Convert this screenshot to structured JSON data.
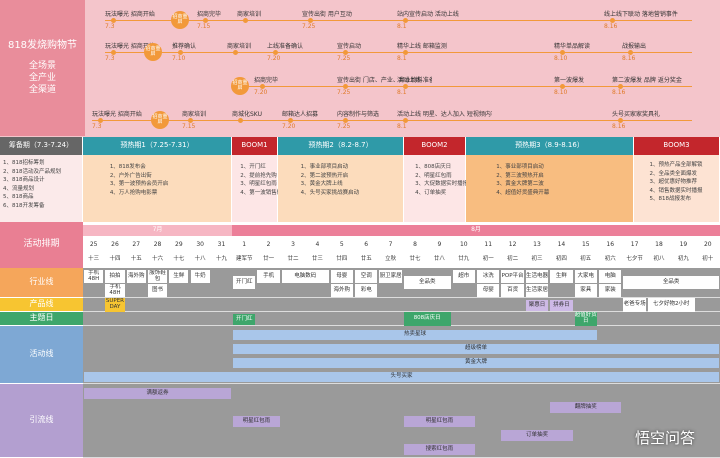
{
  "header": {
    "title": "818发烧购物节",
    "tagline": [
      "全场景",
      "全产业",
      "全渠道"
    ]
  },
  "timelines": [
    [
      {
        "text": "玩法曝光 招商开始",
        "date": "7.3"
      },
      {
        "text": "招商重启"
      },
      {
        "text": "招商完毕",
        "date": "7.15"
      },
      {
        "text": "商家培训"
      },
      {
        "text": "宣传出街 用户互动",
        "date": "7.25"
      },
      {
        "text": "站内宣传启动 活动上线",
        "date": "8.1"
      },
      {
        "text": "线上线下联动 落地营销事件",
        "date": "8.16"
      }
    ],
    [
      {
        "text": "玩法曝光 招商开始",
        "date": "7.3"
      },
      {
        "text": "招商重启"
      },
      {
        "text": "推荐确认",
        "date": "7.10"
      },
      {
        "text": "商家培训"
      },
      {
        "text": "上线准备确认",
        "date": "7.20"
      },
      {
        "text": "宣传启动",
        "date": "7.25"
      },
      {
        "text": "精华上线 邮箱监测",
        "date": "8.1"
      },
      {
        "text": "精华单品解读",
        "date": "8.10"
      },
      {
        "text": "战报输出",
        "date": "8.16"
      }
    ],
    [
      {
        "text": "招商重启"
      },
      {
        "text": "招商完毕",
        "date": "7.20"
      },
      {
        "text": "宣传出街 门店、产业、异业物料准备完毕",
        "date": "7.25"
      },
      {
        "text": "活动上线",
        "date": "8.1"
      },
      {
        "text": "第一波爆发",
        "date": "8.10"
      },
      {
        "text": "第二波爆发 品牌 返分奖金",
        "date": "8.16"
      }
    ],
    [
      {
        "text": "玩法曝光 招商开始",
        "date": "7.3"
      },
      {
        "text": "招商重启"
      },
      {
        "text": "商家培训",
        "date": "7.15"
      },
      {
        "text": "商城化SKU"
      },
      {
        "text": "邮箱达人招募",
        "date": "7.20"
      },
      {
        "text": "内容制作与筛选",
        "date": "7.25"
      },
      {
        "text": "活动上线 明星、达人加入 短视频内容输出 用户互动",
        "date": "8.1"
      },
      {
        "text": "头号买家家奖具礼",
        "date": "8.16"
      }
    ]
  ],
  "phases": [
    {
      "name": "筹备期（7.3-7.24）",
      "notes": [
        "1、818招标筹划",
        "2、818活动及产品规划",
        "3、818商品设计",
        "4、流量规划",
        "5、818商品",
        "6、818开发筹备"
      ]
    },
    {
      "name": "预热期1（7.25-7.31）",
      "notes": [
        "1、818发布会",
        "2、户外广告出街",
        "3、第一波预热会员开启",
        "4、万人抢购电影票"
      ]
    },
    {
      "name": "BOOM1",
      "notes": [
        "1、开门红",
        "2、提前抢先购",
        "3、明星红包雨",
        "4、第一波销售爆发"
      ]
    },
    {
      "name": "预热期2（8.2-8.7）",
      "notes": [
        "1、事业部项目启动",
        "2、第二波预热开启",
        "3、黄金大牌上线",
        "4、头号买家挑战赛启动"
      ]
    },
    {
      "name": "BOOM2",
      "notes": [
        "1、808店庆日",
        "2、明星红包雨",
        "3、大促数据实时播报",
        "4、订单抽奖"
      ]
    },
    {
      "name": "预热期3（8.9-8.16）",
      "notes": [
        "1、事业部项目启动",
        "2、第三波预热开启",
        "3、黄金大牌第二波",
        "4、超值好货盛典开幕"
      ]
    },
    {
      "name": "BOOM3",
      "notes": [
        "1、预热产品全部解锁",
        "2、全品类全面爆发",
        "3、超优惠好物推荐",
        "4、销售数据实时播报",
        "5、818战报发布"
      ]
    }
  ],
  "schedule": {
    "title": "活动排期",
    "months": [
      "7月",
      "8月"
    ],
    "days": [
      25,
      26,
      27,
      28,
      29,
      30,
      31,
      1,
      2,
      3,
      4,
      5,
      6,
      7,
      8,
      9,
      10,
      11,
      12,
      13,
      14,
      15,
      16,
      17,
      18,
      19,
      20
    ],
    "lunar": [
      "十三",
      "十四",
      "十五",
      "十六",
      "十七",
      "十八",
      "十九",
      "建军节",
      "廿一",
      "廿二",
      "廿三",
      "廿四",
      "廿五",
      "立秋",
      "廿七",
      "廿八",
      "廿九",
      "初一",
      "初二",
      "初三",
      "初四",
      "初五",
      "初六",
      "七夕节",
      "初八",
      "初九",
      "初十"
    ]
  },
  "lanes": [
    {
      "name": "行业线",
      "items": [
        "手机48H",
        "拍拍",
        "海外购",
        "服饰鞋包",
        "生鲜",
        "牛奶",
        "开门红",
        "手机",
        "电脑数码",
        "母婴",
        "空调",
        "厨卫家居",
        "全品类",
        "超市",
        "冰洗",
        "POP平台",
        "生活电器",
        "生鲜",
        "大家电",
        "电脑",
        "全品类",
        "手机48H",
        "图书",
        "海外购",
        "彩电",
        "母婴",
        "百货",
        "生活家居",
        "家具",
        "家装"
      ]
    },
    {
      "name": "产品线",
      "items": [
        "SUPER DAY",
        "聚惠日",
        "拼券日",
        "老爸专场",
        "七夕好物2小时"
      ]
    },
    {
      "name": "主题日",
      "items": [
        "开门红",
        "808店庆日",
        "超值好货日"
      ]
    },
    {
      "name": "活动线",
      "items": [
        "热卖星球",
        "超级榜单",
        "黄金大牌",
        "头号买家"
      ]
    },
    {
      "name": "引流线",
      "items": [
        "满额返券",
        "翻牌抽奖",
        "明星红包雨",
        "明星红包雨",
        "订单抽奖",
        "搜索红包雨"
      ]
    }
  ],
  "watermark": "悟空问答"
}
